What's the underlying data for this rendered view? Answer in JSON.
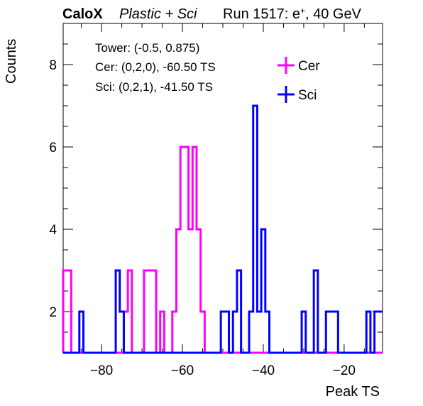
{
  "header": {
    "experiment": "CaloX",
    "config": "Plastic + Sci",
    "run_prefix": "Run 1517: e",
    "run_particle_sup": "+",
    "run_suffix": ", 40 GeV"
  },
  "annotations": {
    "tower": "Tower: (-0.5, 0.875)",
    "cer": "Cer: (0,2,0), -60.50 TS",
    "sci": "Sci: (0,2,1), -41.50 TS"
  },
  "chart_data": {
    "type": "histogram",
    "xlabel": "Peak TS",
    "ylabel": "Counts",
    "xlim": [
      -89.5,
      -10.5
    ],
    "ylim": [
      1,
      9
    ],
    "bin_width": 1,
    "x_ticks": [
      -80,
      -60,
      -40,
      -20
    ],
    "y_ticks": [
      2,
      4,
      6,
      8
    ],
    "tick_labels_x": [
      "−80",
      "−60",
      "−40",
      "−20"
    ],
    "tick_labels_y": [
      "2",
      "4",
      "6",
      "8"
    ],
    "legend": {
      "position": "top-right"
    },
    "series": [
      {
        "name": "Cer",
        "color": "#ff00ff",
        "bins": [
          [
            -89,
            3
          ],
          [
            -88,
            3
          ],
          [
            -74,
            2
          ],
          [
            -73,
            3
          ],
          [
            -69,
            3
          ],
          [
            -68,
            3
          ],
          [
            -67,
            3
          ],
          [
            -65,
            2
          ],
          [
            -62,
            2
          ],
          [
            -61,
            4
          ],
          [
            -60,
            6
          ],
          [
            -59,
            6
          ],
          [
            -58,
            4
          ],
          [
            -57,
            6
          ],
          [
            -56,
            4
          ],
          [
            -55,
            2
          ],
          [
            -40,
            1
          ],
          [
            -11,
            1
          ]
        ]
      },
      {
        "name": "Sci",
        "color": "#0000ff",
        "bins": [
          [
            -85,
            2
          ],
          [
            -76,
            3
          ],
          [
            -75,
            2
          ],
          [
            -50,
            2
          ],
          [
            -49,
            2
          ],
          [
            -47,
            2
          ],
          [
            -46,
            3
          ],
          [
            -43,
            2
          ],
          [
            -42,
            7
          ],
          [
            -41,
            2
          ],
          [
            -40,
            4
          ],
          [
            -39,
            2
          ],
          [
            -30,
            2
          ],
          [
            -27,
            3
          ],
          [
            -24,
            2
          ],
          [
            -23,
            2
          ],
          [
            -22,
            2
          ],
          [
            -14,
            2
          ],
          [
            -12,
            2
          ],
          [
            -11,
            2
          ]
        ]
      }
    ]
  }
}
